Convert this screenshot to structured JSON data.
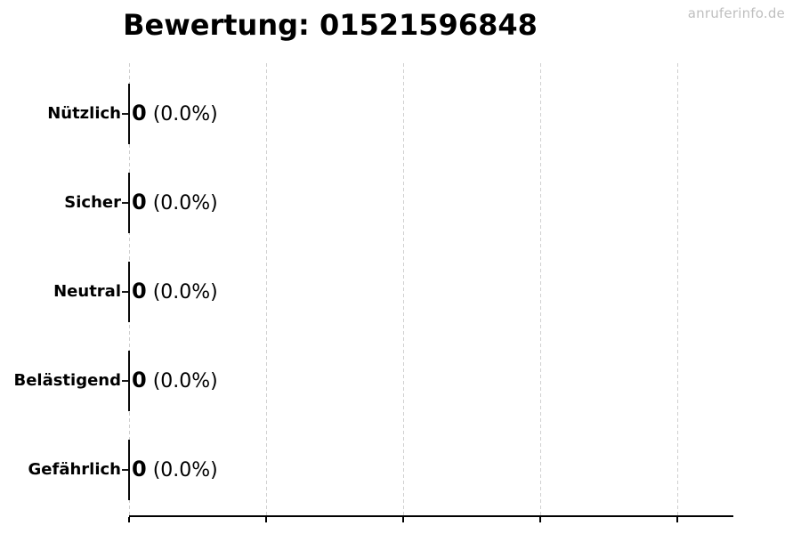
{
  "watermark": {
    "text": "anruferinfo.de"
  },
  "colors": {
    "background": "#ffffff",
    "text": "#000000",
    "watermark": "#bfbfbf",
    "gridline": "#d0d0d0",
    "axis": "#000000",
    "bar_edge": "#0a0a0a"
  },
  "chart_data": {
    "type": "bar",
    "orientation": "horizontal",
    "title": "Bewertung: 01521596848",
    "categories": [
      "Nützlich",
      "Sicher",
      "Neutral",
      "Belästigend",
      "Gefährlich"
    ],
    "values": [
      0,
      0,
      0,
      0,
      0
    ],
    "percentages": [
      0.0,
      0.0,
      0.0,
      0.0,
      0.0
    ],
    "value_labels": [
      "0",
      "0",
      "0",
      "0",
      "0"
    ],
    "percent_labels": [
      "(0.0%)",
      "(0.0%)",
      "(0.0%)",
      "(0.0%)",
      "(0.0%)"
    ],
    "xlabel": "",
    "ylabel": "",
    "x_tick_labels": [],
    "grid": true,
    "vertical_gridline_count": 5,
    "legend": false
  }
}
